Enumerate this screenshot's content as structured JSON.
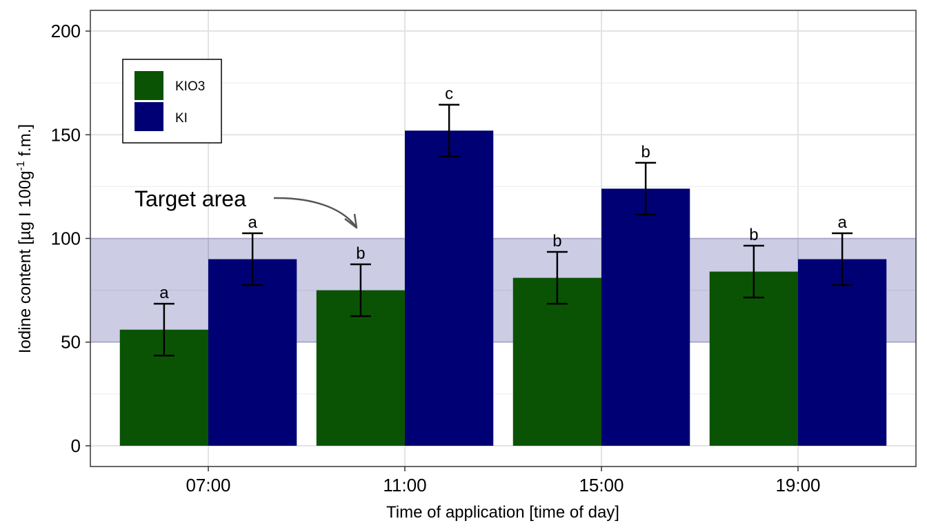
{
  "chart_data": {
    "type": "bar",
    "categories": [
      "07:00",
      "11:00",
      "15:00",
      "19:00"
    ],
    "series": [
      {
        "name": "KIO3",
        "color": "#0b5304",
        "values": [
          56,
          75,
          81,
          84
        ],
        "error": [
          12.5,
          12.5,
          12.5,
          12.5
        ],
        "letters": [
          "a",
          "b",
          "b",
          "b"
        ]
      },
      {
        "name": "KI",
        "color": "#000075",
        "values": [
          90,
          152,
          124,
          90
        ],
        "error": [
          12.5,
          12.5,
          12.5,
          12.5
        ],
        "letters": [
          "a",
          "c",
          "b",
          "a"
        ]
      }
    ],
    "xlabel": "Time of application [time of day]",
    "ylabel": {
      "main": "Iodine content [µg I 100g",
      "sup": "-1",
      "tail": " f.m.]"
    },
    "ylim": [
      -10,
      210
    ],
    "yticks": [
      0,
      50,
      100,
      150,
      200
    ],
    "grid": true,
    "legend_position": "top-left",
    "target_band": {
      "range": [
        50,
        100
      ],
      "color": "#00007e",
      "label": "Target area"
    }
  }
}
